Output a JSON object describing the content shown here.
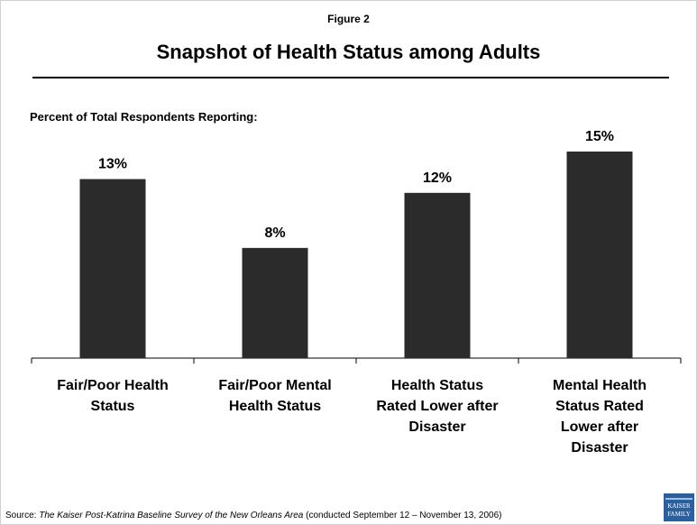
{
  "figure_label": "Figure 2",
  "source": {
    "prefix": "Source: ",
    "title": "The Kaiser Post-Katrina Baseline Survey of the New Orleans Area",
    "suffix": " (conducted September 12 – November 13, 2006)"
  },
  "logo": {
    "text": "KAISER FAMILY",
    "color": "#2b5f9e"
  },
  "colors": {
    "bar": "#2b2b2b",
    "axis": "#000000",
    "frame": "#d0d0d0"
  },
  "chart_data": {
    "type": "bar",
    "title": "Snapshot of Health Status among Adults",
    "subtitle": "Percent of Total Respondents Reporting:",
    "categories": [
      "Fair/Poor Health Status",
      "Fair/Poor Mental Health Status",
      "Health Status Rated Lower after Disaster",
      "Mental Health Status Rated Lower after Disaster"
    ],
    "category_lines": [
      [
        "Fair/Poor Health",
        "Status"
      ],
      [
        "Fair/Poor Mental",
        "Health Status"
      ],
      [
        "Health Status",
        "Rated Lower after",
        "Disaster"
      ],
      [
        "Mental Health",
        "Status Rated",
        "Lower after",
        "Disaster"
      ]
    ],
    "values": [
      13,
      8,
      12,
      15
    ],
    "data_labels": [
      "13%",
      "8%",
      "12%",
      "15%"
    ],
    "ylim": [
      0,
      15
    ],
    "grid": false,
    "legend": "none"
  }
}
